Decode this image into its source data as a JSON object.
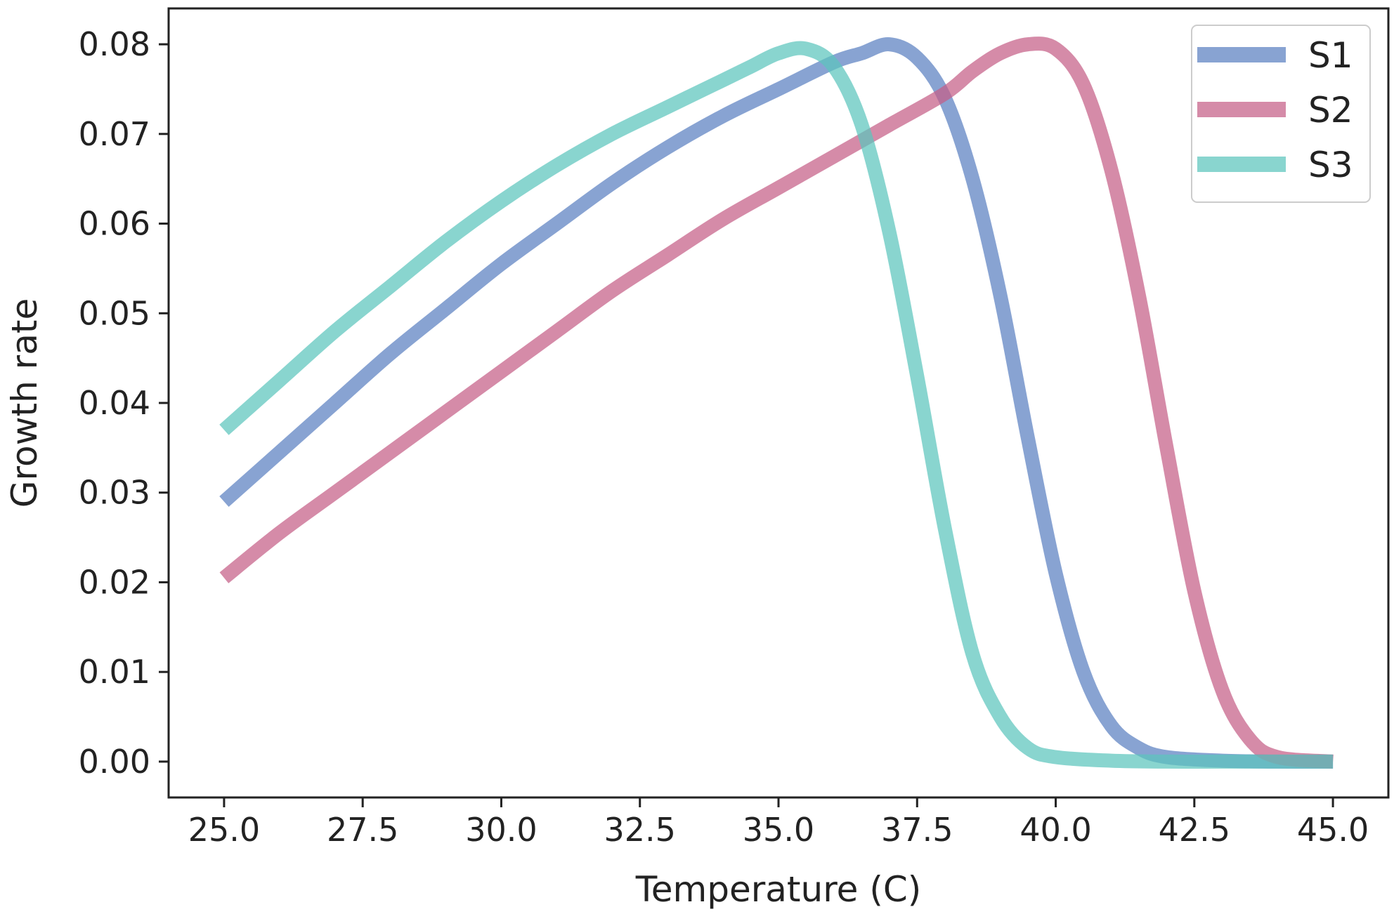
{
  "chart_data": {
    "type": "line",
    "title": "",
    "xlabel": "Temperature (C)",
    "ylabel": "Growth rate",
    "xlim": [
      24.0,
      46.0
    ],
    "ylim": [
      -0.004,
      0.084
    ],
    "xticks": [
      25.0,
      27.5,
      30.0,
      32.5,
      35.0,
      37.5,
      40.0,
      42.5,
      45.0
    ],
    "xtick_labels": [
      "25.0",
      "27.5",
      "30.0",
      "32.5",
      "35.0",
      "37.5",
      "40.0",
      "42.5",
      "45.0"
    ],
    "yticks": [
      0.0,
      0.01,
      0.02,
      0.03,
      0.04,
      0.05,
      0.06,
      0.07,
      0.08
    ],
    "ytick_labels": [
      "0.00",
      "0.01",
      "0.02",
      "0.03",
      "0.04",
      "0.05",
      "0.06",
      "0.07",
      "0.08"
    ],
    "grid": false,
    "legend_position": "top-right",
    "series": [
      {
        "name": "S1",
        "color": "#5a7fc1",
        "x": [
          25,
          26,
          27,
          28,
          29,
          30,
          31,
          32,
          33,
          34,
          35,
          36,
          36.5,
          37,
          37.5,
          38,
          38.5,
          39,
          39.5,
          40,
          40.5,
          41,
          41.5,
          42,
          43,
          44,
          45
        ],
        "y": [
          0.029,
          0.0345,
          0.04,
          0.0455,
          0.0505,
          0.0555,
          0.06,
          0.0645,
          0.0685,
          0.072,
          0.075,
          0.078,
          0.079,
          0.08,
          0.0785,
          0.074,
          0.065,
          0.052,
          0.036,
          0.021,
          0.01,
          0.004,
          0.0015,
          0.0005,
          0.0001,
          0.0,
          0.0
        ]
      },
      {
        "name": "S2",
        "color": "#c55e86",
        "x": [
          25,
          26,
          27,
          28,
          29,
          30,
          31,
          32,
          33,
          34,
          35,
          36,
          37,
          38,
          38.5,
          39,
          39.5,
          40,
          40.5,
          41,
          41.5,
          42,
          42.5,
          43,
          43.5,
          44,
          45
        ],
        "y": [
          0.0205,
          0.0255,
          0.03,
          0.0345,
          0.039,
          0.0435,
          0.048,
          0.0525,
          0.0565,
          0.0605,
          0.064,
          0.0675,
          0.071,
          0.0745,
          0.077,
          0.079,
          0.08,
          0.0795,
          0.0755,
          0.066,
          0.052,
          0.035,
          0.019,
          0.008,
          0.0025,
          0.0005,
          0.0
        ]
      },
      {
        "name": "S3",
        "color": "#5bc5bd",
        "x": [
          25,
          26,
          27,
          28,
          29,
          30,
          31,
          32,
          33,
          34,
          34.5,
          35,
          35.5,
          36,
          36.5,
          37,
          37.5,
          38,
          38.5,
          39,
          39.5,
          40,
          41,
          42,
          43,
          44,
          45
        ],
        "y": [
          0.037,
          0.0425,
          0.048,
          0.053,
          0.058,
          0.0625,
          0.0665,
          0.07,
          0.073,
          0.076,
          0.0775,
          0.079,
          0.0795,
          0.0775,
          0.071,
          0.059,
          0.043,
          0.026,
          0.012,
          0.005,
          0.0015,
          0.0005,
          0.0001,
          0.0,
          0.0,
          0.0,
          0.0
        ]
      }
    ]
  }
}
